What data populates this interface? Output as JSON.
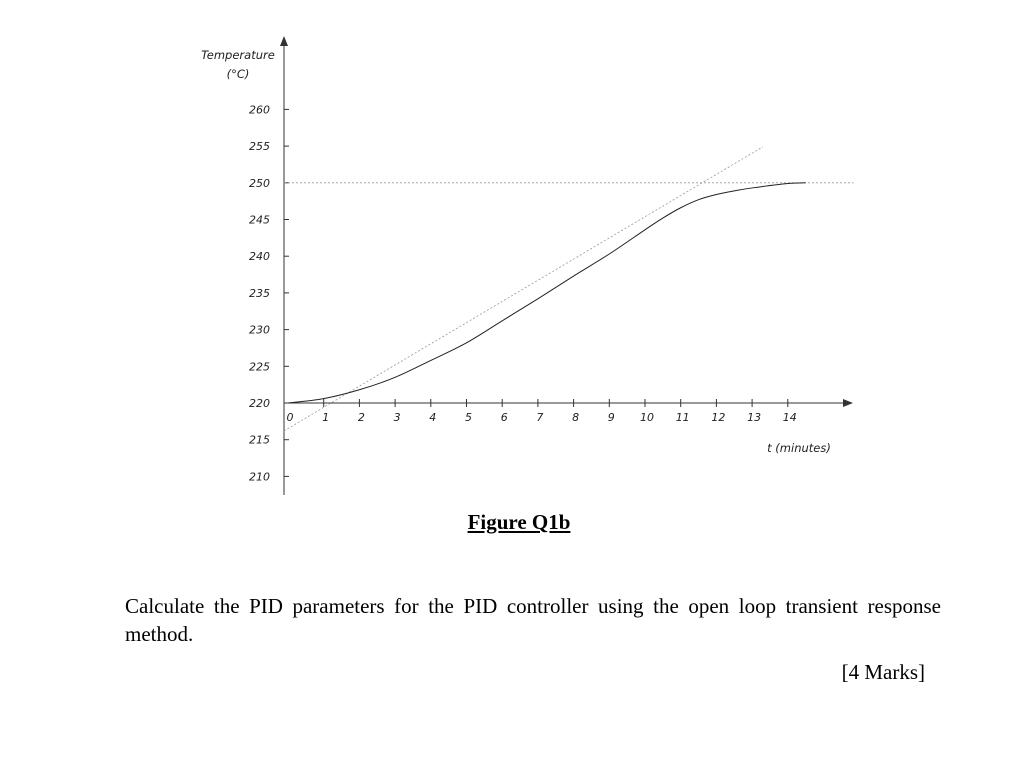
{
  "chart_data": {
    "type": "line",
    "ylabel_line1": "Temperature",
    "ylabel_line2": "(°C)",
    "xlabel": "t (minutes)",
    "xlim": [
      0,
      15
    ],
    "ylim": [
      210,
      262
    ],
    "x_ticks": [
      0,
      1,
      2,
      3,
      4,
      5,
      6,
      7,
      8,
      9,
      10,
      11,
      12,
      13,
      14
    ],
    "y_ticks": [
      210,
      215,
      220,
      225,
      230,
      235,
      240,
      245,
      250,
      255,
      260
    ],
    "x_axis_crosses_y_at": 220,
    "series": [
      {
        "style": "solid",
        "x": [
          0,
          1,
          2,
          3,
          4,
          5,
          6,
          7,
          8,
          9,
          10,
          10.5,
          11,
          11.5,
          12,
          12.5,
          13,
          14,
          14.5
        ],
        "y": [
          220,
          220.6,
          221.8,
          223.5,
          225.8,
          228.2,
          231.2,
          234.2,
          237.3,
          240.3,
          243.6,
          245.2,
          246.6,
          247.7,
          248.4,
          248.9,
          249.3,
          249.9,
          250
        ]
      }
    ],
    "reference_lines": [
      {
        "style": "dotted",
        "kind": "tangent",
        "x": [
          0,
          13.3
        ],
        "y": [
          216.2,
          254.9
        ]
      },
      {
        "style": "dotted",
        "kind": "horizontal",
        "y": 250,
        "x": [
          0,
          15
        ]
      }
    ]
  },
  "caption": "Figure Q1b",
  "question_text": "Calculate the PID parameters for the PID controller using the open loop transient response method.",
  "marks": "[4 Marks]"
}
